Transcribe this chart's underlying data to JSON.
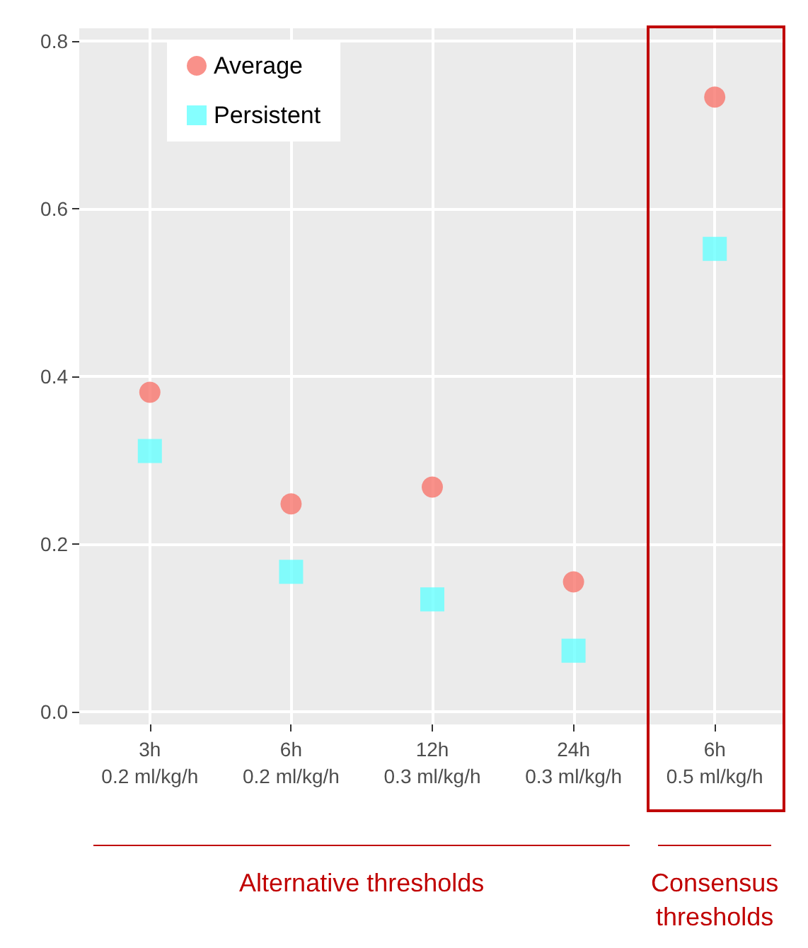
{
  "chart_data": {
    "type": "scatter",
    "categories": [
      "3h\n0.2 ml/kg/h",
      "6h\n0.2 ml/kg/h",
      "12h\n0.3 ml/kg/h",
      "24h\n0.3 ml/kg/h",
      "6h\n0.5 ml/kg/h"
    ],
    "series": [
      {
        "name": "Average",
        "color": "#f8766d",
        "marker": "circle",
        "values": [
          0.381,
          0.248,
          0.268,
          0.155,
          0.733
        ]
      },
      {
        "name": "Persistent",
        "color": "#66ffff",
        "marker": "square",
        "values": [
          0.311,
          0.167,
          0.134,
          0.073,
          0.552
        ]
      }
    ],
    "ylim": [
      -0.015,
      0.815
    ],
    "yticks": [
      {
        "value": 0,
        "label": "0.0"
      },
      {
        "value": 0.2,
        "label": "0.2"
      },
      {
        "value": 0.4,
        "label": "0.4"
      },
      {
        "value": 0.6,
        "label": "0.6"
      },
      {
        "value": 0.8,
        "label": "0.8"
      }
    ],
    "grid": true,
    "legend": "top left",
    "annotations": [
      "Alternative thresholds",
      "Consensus thresholds"
    ]
  }
}
